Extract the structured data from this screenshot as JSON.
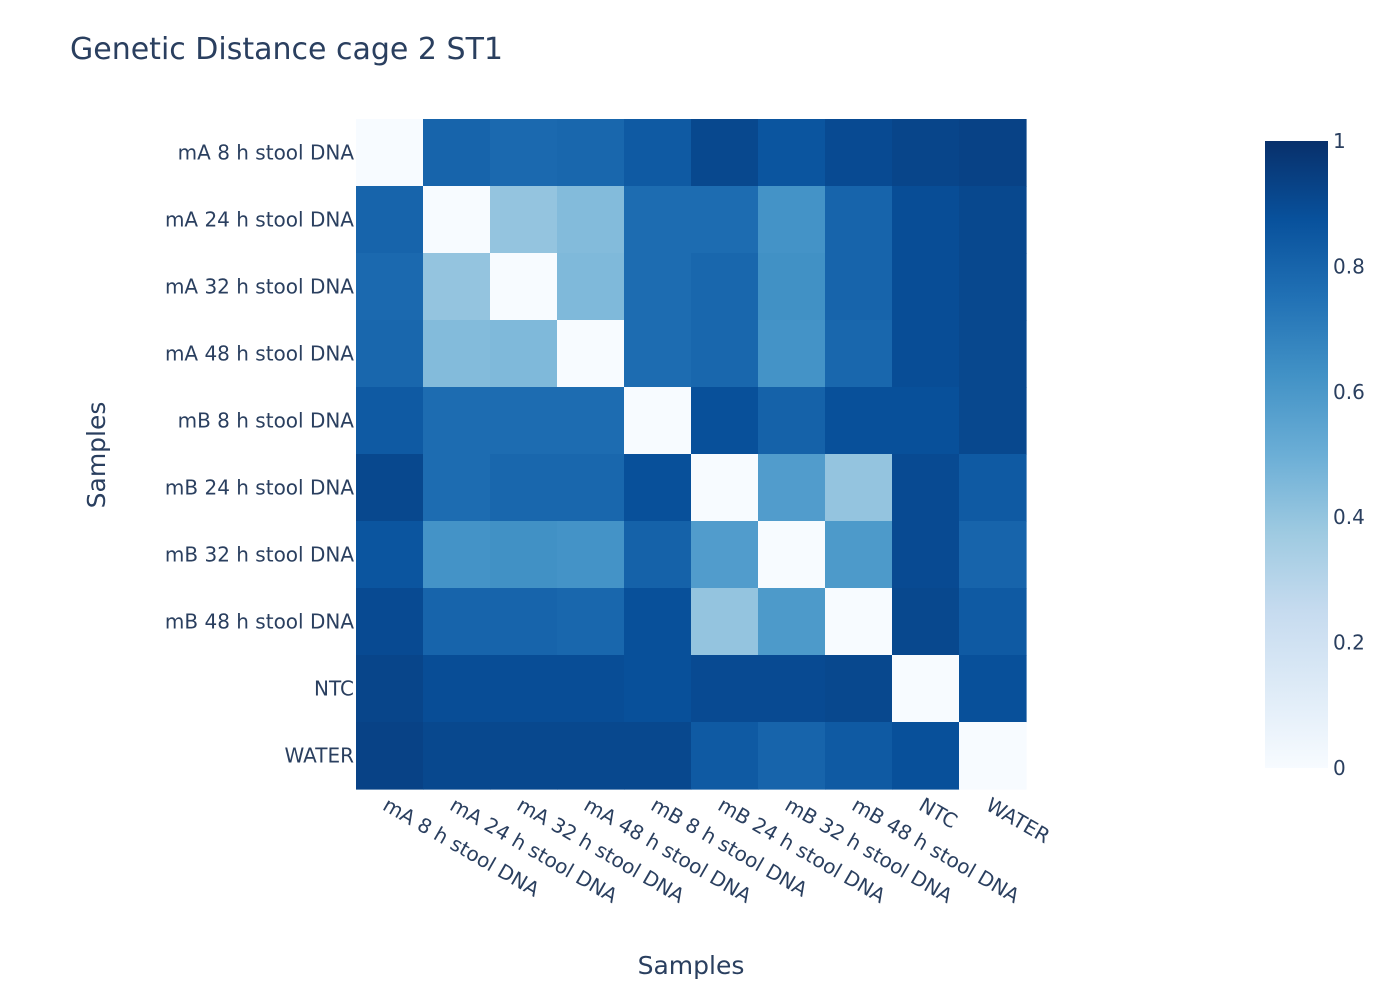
{
  "chart_data": {
    "type": "heatmap",
    "title": "Genetic Distance cage 2 ST1",
    "xlabel": "Samples",
    "ylabel": "Samples",
    "x": [
      "mA 8 h stool DNA",
      "mA 24 h stool DNA",
      "mA 32 h stool DNA",
      "mA 48 h stool DNA",
      "mB 8 h stool DNA",
      "mB 24 h stool DNA",
      "mB 32 h stool DNA",
      "mB 48 h stool DNA",
      "NTC",
      "WATER"
    ],
    "y": [
      "mA 8 h stool DNA",
      "mA 24 h stool DNA",
      "mA 32 h stool DNA",
      "mA 48 h stool DNA",
      "mB 8 h stool DNA",
      "mB 24 h stool DNA",
      "mB 32 h stool DNA",
      "mB 48 h stool DNA",
      "NTC",
      "WATER"
    ],
    "z": [
      [
        0.0,
        0.8,
        0.78,
        0.79,
        0.84,
        0.91,
        0.86,
        0.9,
        0.92,
        0.93
      ],
      [
        0.8,
        0.0,
        0.4,
        0.44,
        0.77,
        0.77,
        0.62,
        0.8,
        0.89,
        0.91
      ],
      [
        0.78,
        0.4,
        0.0,
        0.45,
        0.77,
        0.79,
        0.63,
        0.8,
        0.89,
        0.91
      ],
      [
        0.79,
        0.44,
        0.45,
        0.0,
        0.77,
        0.79,
        0.62,
        0.79,
        0.89,
        0.91
      ],
      [
        0.84,
        0.77,
        0.77,
        0.77,
        0.0,
        0.88,
        0.81,
        0.88,
        0.88,
        0.91
      ],
      [
        0.91,
        0.77,
        0.79,
        0.79,
        0.88,
        0.0,
        0.58,
        0.4,
        0.9,
        0.84
      ],
      [
        0.86,
        0.62,
        0.63,
        0.62,
        0.81,
        0.58,
        0.0,
        0.59,
        0.9,
        0.8
      ],
      [
        0.9,
        0.8,
        0.8,
        0.79,
        0.88,
        0.4,
        0.59,
        0.0,
        0.91,
        0.84
      ],
      [
        0.92,
        0.89,
        0.89,
        0.89,
        0.88,
        0.9,
        0.9,
        0.91,
        0.0,
        0.88
      ],
      [
        0.93,
        0.91,
        0.91,
        0.91,
        0.91,
        0.84,
        0.8,
        0.84,
        0.88,
        0.0
      ]
    ],
    "zlim": [
      0,
      1
    ],
    "colorscale": "Blues",
    "colorscale_stops": [
      "#f7fbff",
      "#deebf7",
      "#c6dbef",
      "#9ecae1",
      "#6baed6",
      "#4292c6",
      "#2171b5",
      "#08519c",
      "#08306b"
    ],
    "colorbar": {
      "ticks": [
        0,
        0.2,
        0.4,
        0.6,
        0.8,
        1
      ],
      "tick_labels": [
        "0",
        "0.2",
        "0.4",
        "0.6",
        "0.8",
        "1"
      ]
    }
  }
}
